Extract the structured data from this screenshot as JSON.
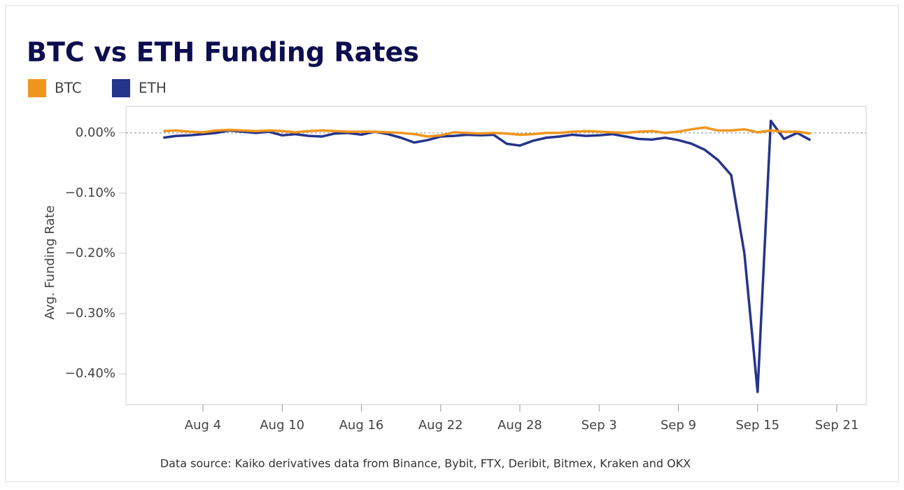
{
  "chart_data": {
    "type": "line",
    "title": "BTC vs ETH Funding Rates",
    "y_label": "Avg. Funding Rate",
    "source": "Data source: Kaiko derivatives data from Binance, Bybit, FTX, Deribit, Bitmex, Kraken and OKX",
    "x": [
      "Aug 1",
      "Aug 2",
      "Aug 3",
      "Aug 4",
      "Aug 5",
      "Aug 6",
      "Aug 7",
      "Aug 8",
      "Aug 9",
      "Aug 10",
      "Aug 11",
      "Aug 12",
      "Aug 13",
      "Aug 14",
      "Aug 15",
      "Aug 16",
      "Aug 17",
      "Aug 18",
      "Aug 19",
      "Aug 20",
      "Aug 21",
      "Aug 22",
      "Aug 23",
      "Aug 24",
      "Aug 25",
      "Aug 26",
      "Aug 27",
      "Aug 28",
      "Aug 29",
      "Aug 30",
      "Aug 31",
      "Sep 1",
      "Sep 2",
      "Sep 3",
      "Sep 4",
      "Sep 5",
      "Sep 6",
      "Sep 7",
      "Sep 8",
      "Sep 9",
      "Sep 10",
      "Sep 11",
      "Sep 12",
      "Sep 13",
      "Sep 14",
      "Sep 15",
      "Sep 16",
      "Sep 17",
      "Sep 18",
      "Sep 19"
    ],
    "series": [
      {
        "name": "ETH",
        "color": "#25348c",
        "values": [
          -0.008,
          -0.005,
          -0.004,
          -0.002,
          0.0,
          0.004,
          0.002,
          0.0,
          0.002,
          -0.004,
          -0.002,
          -0.005,
          -0.006,
          -0.001,
          0.0,
          -0.003,
          0.002,
          -0.002,
          -0.008,
          -0.016,
          -0.012,
          -0.006,
          -0.005,
          -0.003,
          -0.004,
          -0.003,
          -0.018,
          -0.021,
          -0.013,
          -0.008,
          -0.006,
          -0.003,
          -0.005,
          -0.004,
          -0.002,
          -0.006,
          -0.01,
          -0.011,
          -0.008,
          -0.012,
          -0.018,
          -0.028,
          -0.045,
          -0.07,
          -0.2,
          -0.43,
          0.02,
          -0.01,
          0.0,
          -0.012
        ]
      },
      {
        "name": "BTC",
        "color": "#f0961e",
        "values": [
          0.003,
          0.004,
          0.002,
          0.001,
          0.004,
          0.005,
          0.004,
          0.003,
          0.004,
          0.003,
          0.001,
          0.003,
          0.004,
          0.003,
          0.002,
          0.002,
          0.002,
          0.001,
          0.0,
          -0.002,
          -0.006,
          -0.004,
          0.001,
          0.0,
          -0.001,
          0.0,
          -0.001,
          -0.003,
          -0.002,
          0.0,
          0.0,
          0.002,
          0.003,
          0.002,
          0.001,
          0.0,
          0.002,
          0.003,
          0.0,
          0.002,
          0.006,
          0.009,
          0.004,
          0.004,
          0.006,
          0.001,
          0.004,
          0.002,
          0.002,
          -0.001
        ]
      }
    ],
    "legend_order": [
      1,
      0
    ],
    "xticks": [
      "Aug 4",
      "Aug 10",
      "Aug 16",
      "Aug 22",
      "Aug 28",
      "Sep 3",
      "Sep 9",
      "Sep 15",
      "Sep 21"
    ],
    "ylim": [
      -0.451,
      0.044
    ],
    "yticks": [
      {
        "value": 0,
        "label": "0.00%"
      },
      {
        "value": -0.1,
        "label": "−0.10%"
      },
      {
        "value": -0.2,
        "label": "−0.20%"
      },
      {
        "value": -0.3,
        "label": "−0.30%"
      },
      {
        "value": -0.4,
        "label": "−0.40%"
      }
    ]
  }
}
